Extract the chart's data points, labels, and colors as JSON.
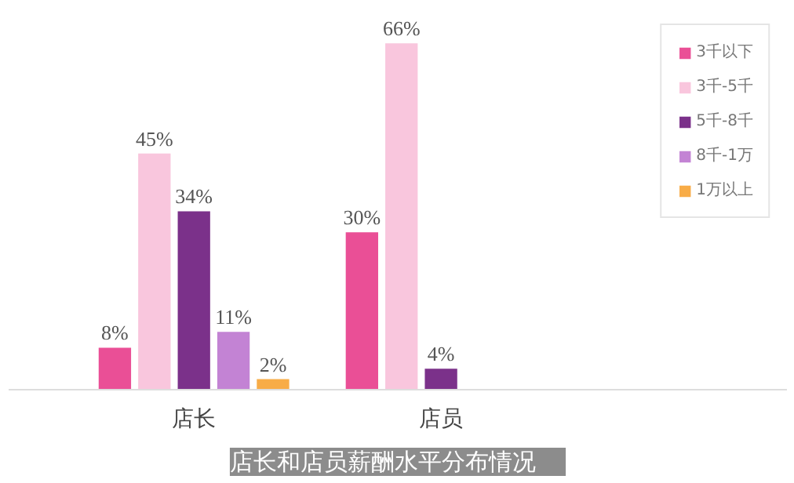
{
  "chart_data": {
    "type": "bar",
    "title": "店长和店员薪酬水平分布情况",
    "categories": [
      "店长",
      "店员"
    ],
    "series": [
      {
        "name": "3千以下",
        "color": "#ea4f96",
        "values": [
          8,
          30
        ],
        "value_labels": [
          "8%",
          "30%"
        ]
      },
      {
        "name": "3千-5千",
        "color": "#f9c6dd",
        "values": [
          45,
          66
        ],
        "value_labels": [
          "45%",
          "66%"
        ]
      },
      {
        "name": "5千-8千",
        "color": "#7b318a",
        "values": [
          34,
          4
        ],
        "value_labels": [
          "34%",
          "4%"
        ]
      },
      {
        "name": "8千-1万",
        "color": "#c383d4",
        "values": [
          11,
          null
        ],
        "value_labels": [
          "11%",
          null
        ]
      },
      {
        "name": "1万以上",
        "color": "#f8ac47",
        "values": [
          2,
          null
        ],
        "value_labels": [
          "2%",
          null
        ]
      }
    ],
    "legend": "right"
  }
}
